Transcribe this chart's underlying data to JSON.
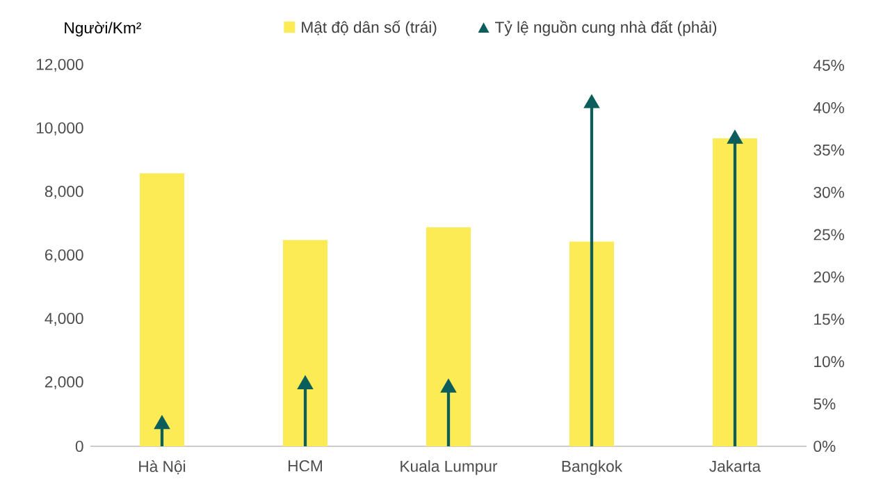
{
  "chart_data": {
    "type": "bar",
    "ylabel": "Người/Km²",
    "categories": [
      "Hà Nội",
      "HCM",
      "Kuala Lumpur",
      "Bangkok",
      "Jakarta"
    ],
    "series": [
      {
        "name": "Mật độ dân số (trái)",
        "color": "#fdeb55",
        "values": [
          8600,
          6500,
          6900,
          6450,
          9700
        ]
      },
      {
        "name": "Tỷ lệ nguồn cung nhà đất (phải)",
        "color": "#0b5e5b",
        "type": "lollipop",
        "axis": "y2",
        "marker": "triangle",
        "values": [
          2.6,
          7.3,
          6.9,
          40.5,
          36.3
        ]
      }
    ],
    "ylim": [
      0,
      12000
    ],
    "yticks": [
      {
        "value": 0,
        "label": "0"
      },
      {
        "value": 2000,
        "label": "2,000"
      },
      {
        "value": 4000,
        "label": "4,000"
      },
      {
        "value": 6000,
        "label": "6,000"
      },
      {
        "value": 8000,
        "label": "8,000"
      },
      {
        "value": 10000,
        "label": "10,000"
      },
      {
        "value": 12000,
        "label": "12,000"
      }
    ],
    "y2lim": [
      0,
      45
    ],
    "y2ticks": [
      {
        "value": 0,
        "label": "0%"
      },
      {
        "value": 5,
        "label": "5%"
      },
      {
        "value": 10,
        "label": "10%"
      },
      {
        "value": 15,
        "label": "15%"
      },
      {
        "value": 20,
        "label": "20%"
      },
      {
        "value": 25,
        "label": "25%"
      },
      {
        "value": 30,
        "label": "30%"
      },
      {
        "value": 35,
        "label": "35%"
      },
      {
        "value": 40,
        "label": "40%"
      },
      {
        "value": 45,
        "label": "45%"
      }
    ],
    "legend": "top"
  }
}
